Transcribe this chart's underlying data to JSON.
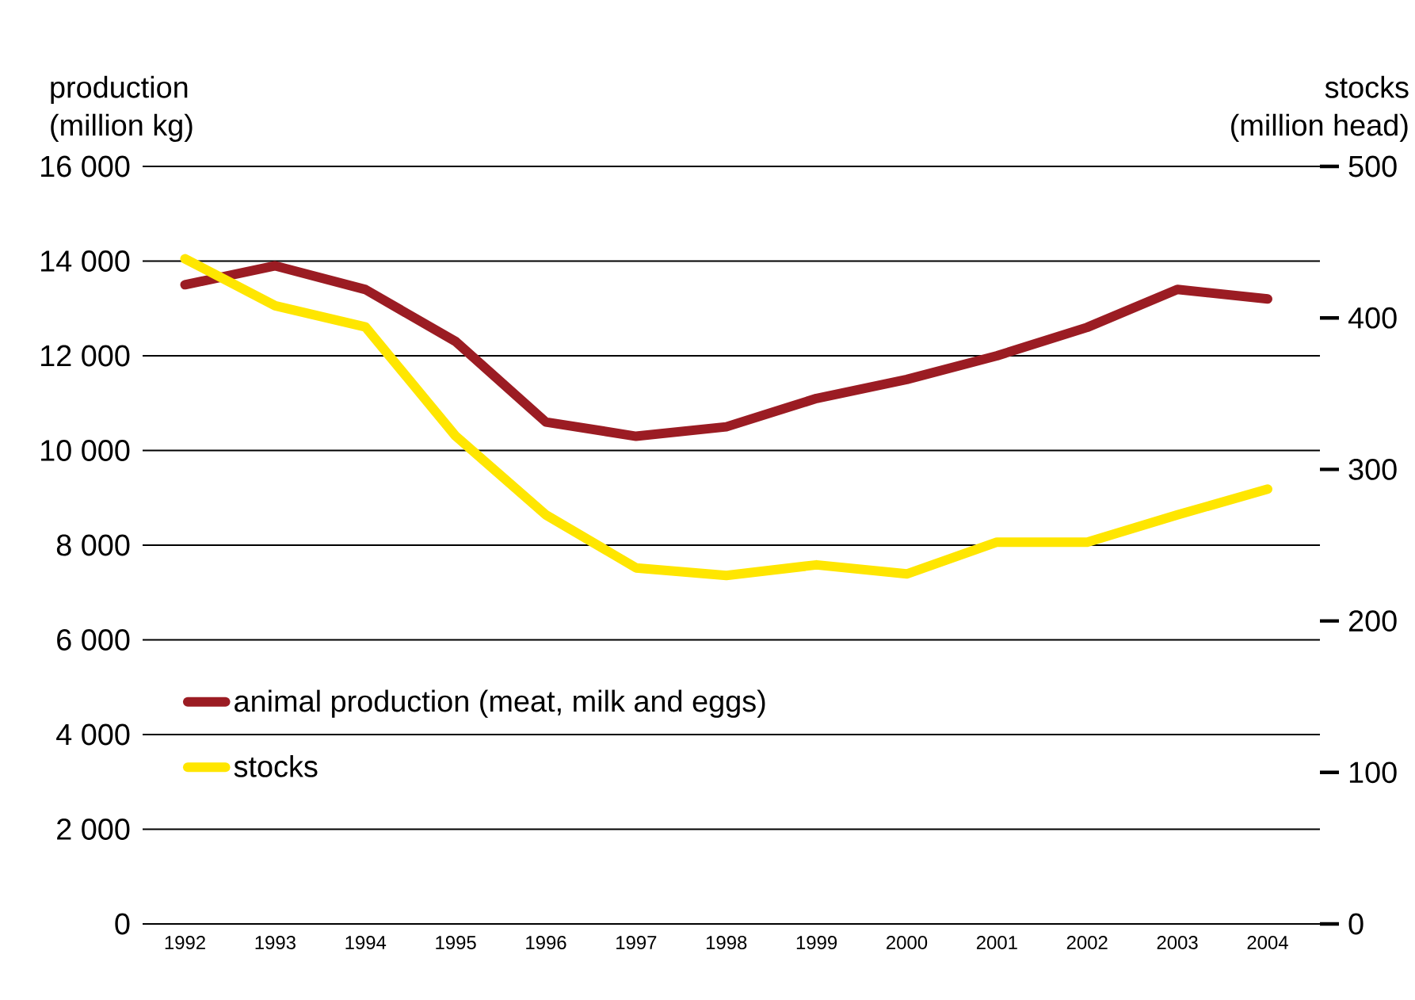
{
  "chart_data": {
    "type": "line",
    "categories": [
      "1992",
      "1993",
      "1994",
      "1995",
      "1996",
      "1997",
      "1998",
      "1999",
      "2000",
      "2001",
      "2002",
      "2003",
      "2004"
    ],
    "ylabel": "production\n(million kg)",
    "y2label": "stocks\n(million head)",
    "ylim": [
      0,
      16000
    ],
    "yticks": [
      {
        "value": 0,
        "label": "0"
      },
      {
        "value": 2000,
        "label": "2 000"
      },
      {
        "value": 4000,
        "label": "4 000"
      },
      {
        "value": 6000,
        "label": "6 000"
      },
      {
        "value": 8000,
        "label": "8 000"
      },
      {
        "value": 10000,
        "label": "10 000"
      },
      {
        "value": 12000,
        "label": "12 000"
      },
      {
        "value": 14000,
        "label": "14 000"
      },
      {
        "value": 16000,
        "label": "16 000"
      }
    ],
    "y2lim": [
      0,
      500
    ],
    "y2ticks": [
      0,
      100,
      200,
      300,
      400,
      500
    ],
    "series": [
      {
        "name": "animal production (meat, milk and eggs)",
        "color": "#9b1c23",
        "values": [
          13500,
          13900,
          13400,
          12300,
          10600,
          10300,
          10500,
          11100,
          11500,
          12000,
          12600,
          13400,
          13200
        ]
      },
      {
        "name": "stocks",
        "color": "#ffe600",
        "axis": "y2",
        "values": [
          439,
          408,
          394,
          322,
          270,
          235,
          230,
          237,
          231,
          252,
          252,
          270,
          287
        ]
      }
    ],
    "grid": "y",
    "legend": "left",
    "line_style": "solid"
  }
}
